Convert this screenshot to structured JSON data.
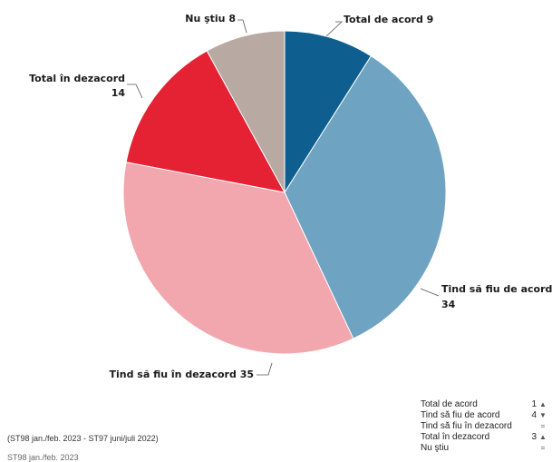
{
  "chart_data": {
    "type": "pie",
    "slices": [
      {
        "name": "Total de acord",
        "value": 9,
        "color": "#0e5f8f"
      },
      {
        "name": "Tind să fiu de acord",
        "value": 34,
        "color": "#6ea3c2"
      },
      {
        "name": "Tind să fiu în dezacord",
        "value": 35,
        "color": "#f2a6ae"
      },
      {
        "name": "Total în dezacord",
        "value": 14,
        "color": "#e52134"
      },
      {
        "name": "Nu ştiu",
        "value": 8,
        "color": "#b8a9a2"
      }
    ],
    "slice_labels": [
      {
        "name": "Total de acord",
        "text": "Total de acord 9"
      },
      {
        "name": "Tind să fiu de acord",
        "text": "Tind să fiu de acord",
        "text2": "34"
      },
      {
        "name": "Tind să fiu în dezacord",
        "text": "Tind să fiu în dezacord 35"
      },
      {
        "name": "Total în dezacord",
        "text": "Total în dezacord",
        "text2": "14"
      },
      {
        "name": "Nu ştiu",
        "text": "Nu ştiu 8"
      }
    ]
  },
  "trend_table": [
    {
      "label": "Total de acord",
      "change": "1",
      "direction": "up"
    },
    {
      "label": "Tind să fiu de acord",
      "change": "4",
      "direction": "down"
    },
    {
      "label": "Tind să fiu în dezacord",
      "change": "",
      "direction": "equal"
    },
    {
      "label": "Total în dezacord",
      "change": "3",
      "direction": "up"
    },
    {
      "label": "Nu ştiu",
      "change": "",
      "direction": "equal"
    }
  ],
  "footnotes": {
    "comparison": "(ST98 jan./feb. 2023 - ST97 juni/juli 2022)",
    "period": "ST98 jan./feb. 2023"
  }
}
